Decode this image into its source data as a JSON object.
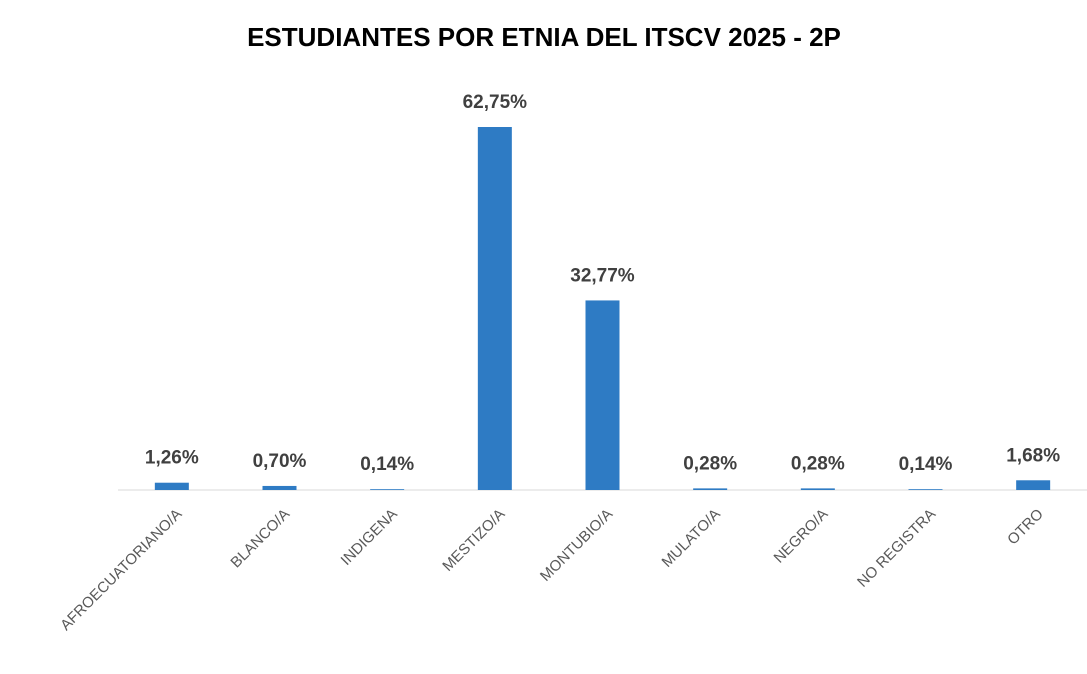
{
  "chart_data": {
    "type": "bar",
    "title": "ESTUDIANTES POR ETNIA DEL ITSCV 2025 - 2P",
    "categories": [
      "AFROECUATORIANO/A",
      "BLANCO/A",
      "INDIGENA",
      "MESTIZO/A",
      "MONTUBIO/A",
      "MULATO/A",
      "NEGRO/A",
      "NO REGISTRA",
      "OTRO"
    ],
    "values": [
      1.26,
      0.7,
      0.14,
      62.75,
      32.77,
      0.28,
      0.28,
      0.14,
      1.68
    ],
    "value_labels": [
      "1,26%",
      "0,70%",
      "0,14%",
      "62,75%",
      "32,77%",
      "0,28%",
      "0,28%",
      "0,14%",
      "1,68%"
    ],
    "color": "#2e7bc4"
  }
}
